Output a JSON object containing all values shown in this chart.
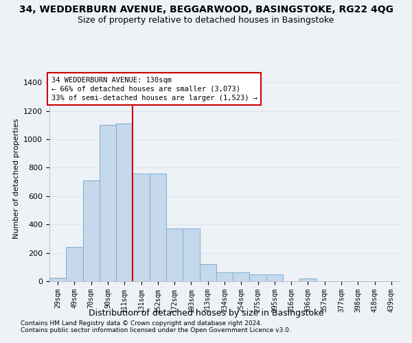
{
  "title": "34, WEDDERBURN AVENUE, BEGGARWOOD, BASINGSTOKE, RG22 4QG",
  "subtitle": "Size of property relative to detached houses in Basingstoke",
  "xlabel": "Distribution of detached houses by size in Basingstoke",
  "ylabel": "Number of detached properties",
  "footnote1": "Contains HM Land Registry data © Crown copyright and database right 2024.",
  "footnote2": "Contains public sector information licensed under the Open Government Licence v3.0.",
  "bar_labels": [
    "29sqm",
    "49sqm",
    "70sqm",
    "90sqm",
    "111sqm",
    "131sqm",
    "152sqm",
    "172sqm",
    "193sqm",
    "213sqm",
    "234sqm",
    "254sqm",
    "275sqm",
    "295sqm",
    "316sqm",
    "336sqm",
    "357sqm",
    "377sqm",
    "398sqm",
    "418sqm",
    "439sqm"
  ],
  "bar_values": [
    25,
    240,
    710,
    1100,
    1110,
    760,
    760,
    370,
    370,
    120,
    65,
    65,
    50,
    50,
    0,
    20,
    0,
    0,
    0,
    0,
    0
  ],
  "property_line_idx": 5,
  "property_label": "34 WEDDERBURN AVENUE: 130sqm",
  "annotation_line1": "← 66% of detached houses are smaller (3,073)",
  "annotation_line2": "33% of semi-detached houses are larger (1,523) →",
  "bar_color": "#c5d8ec",
  "bar_edge_color": "#7aaed4",
  "line_color": "#cc0000",
  "annotation_box_color": "#cc0000",
  "background_color": "#eef2f7",
  "grid_color": "#d8e4f0",
  "ylim": [
    0,
    1450
  ],
  "yticks": [
    0,
    200,
    400,
    600,
    800,
    1000,
    1200,
    1400
  ]
}
